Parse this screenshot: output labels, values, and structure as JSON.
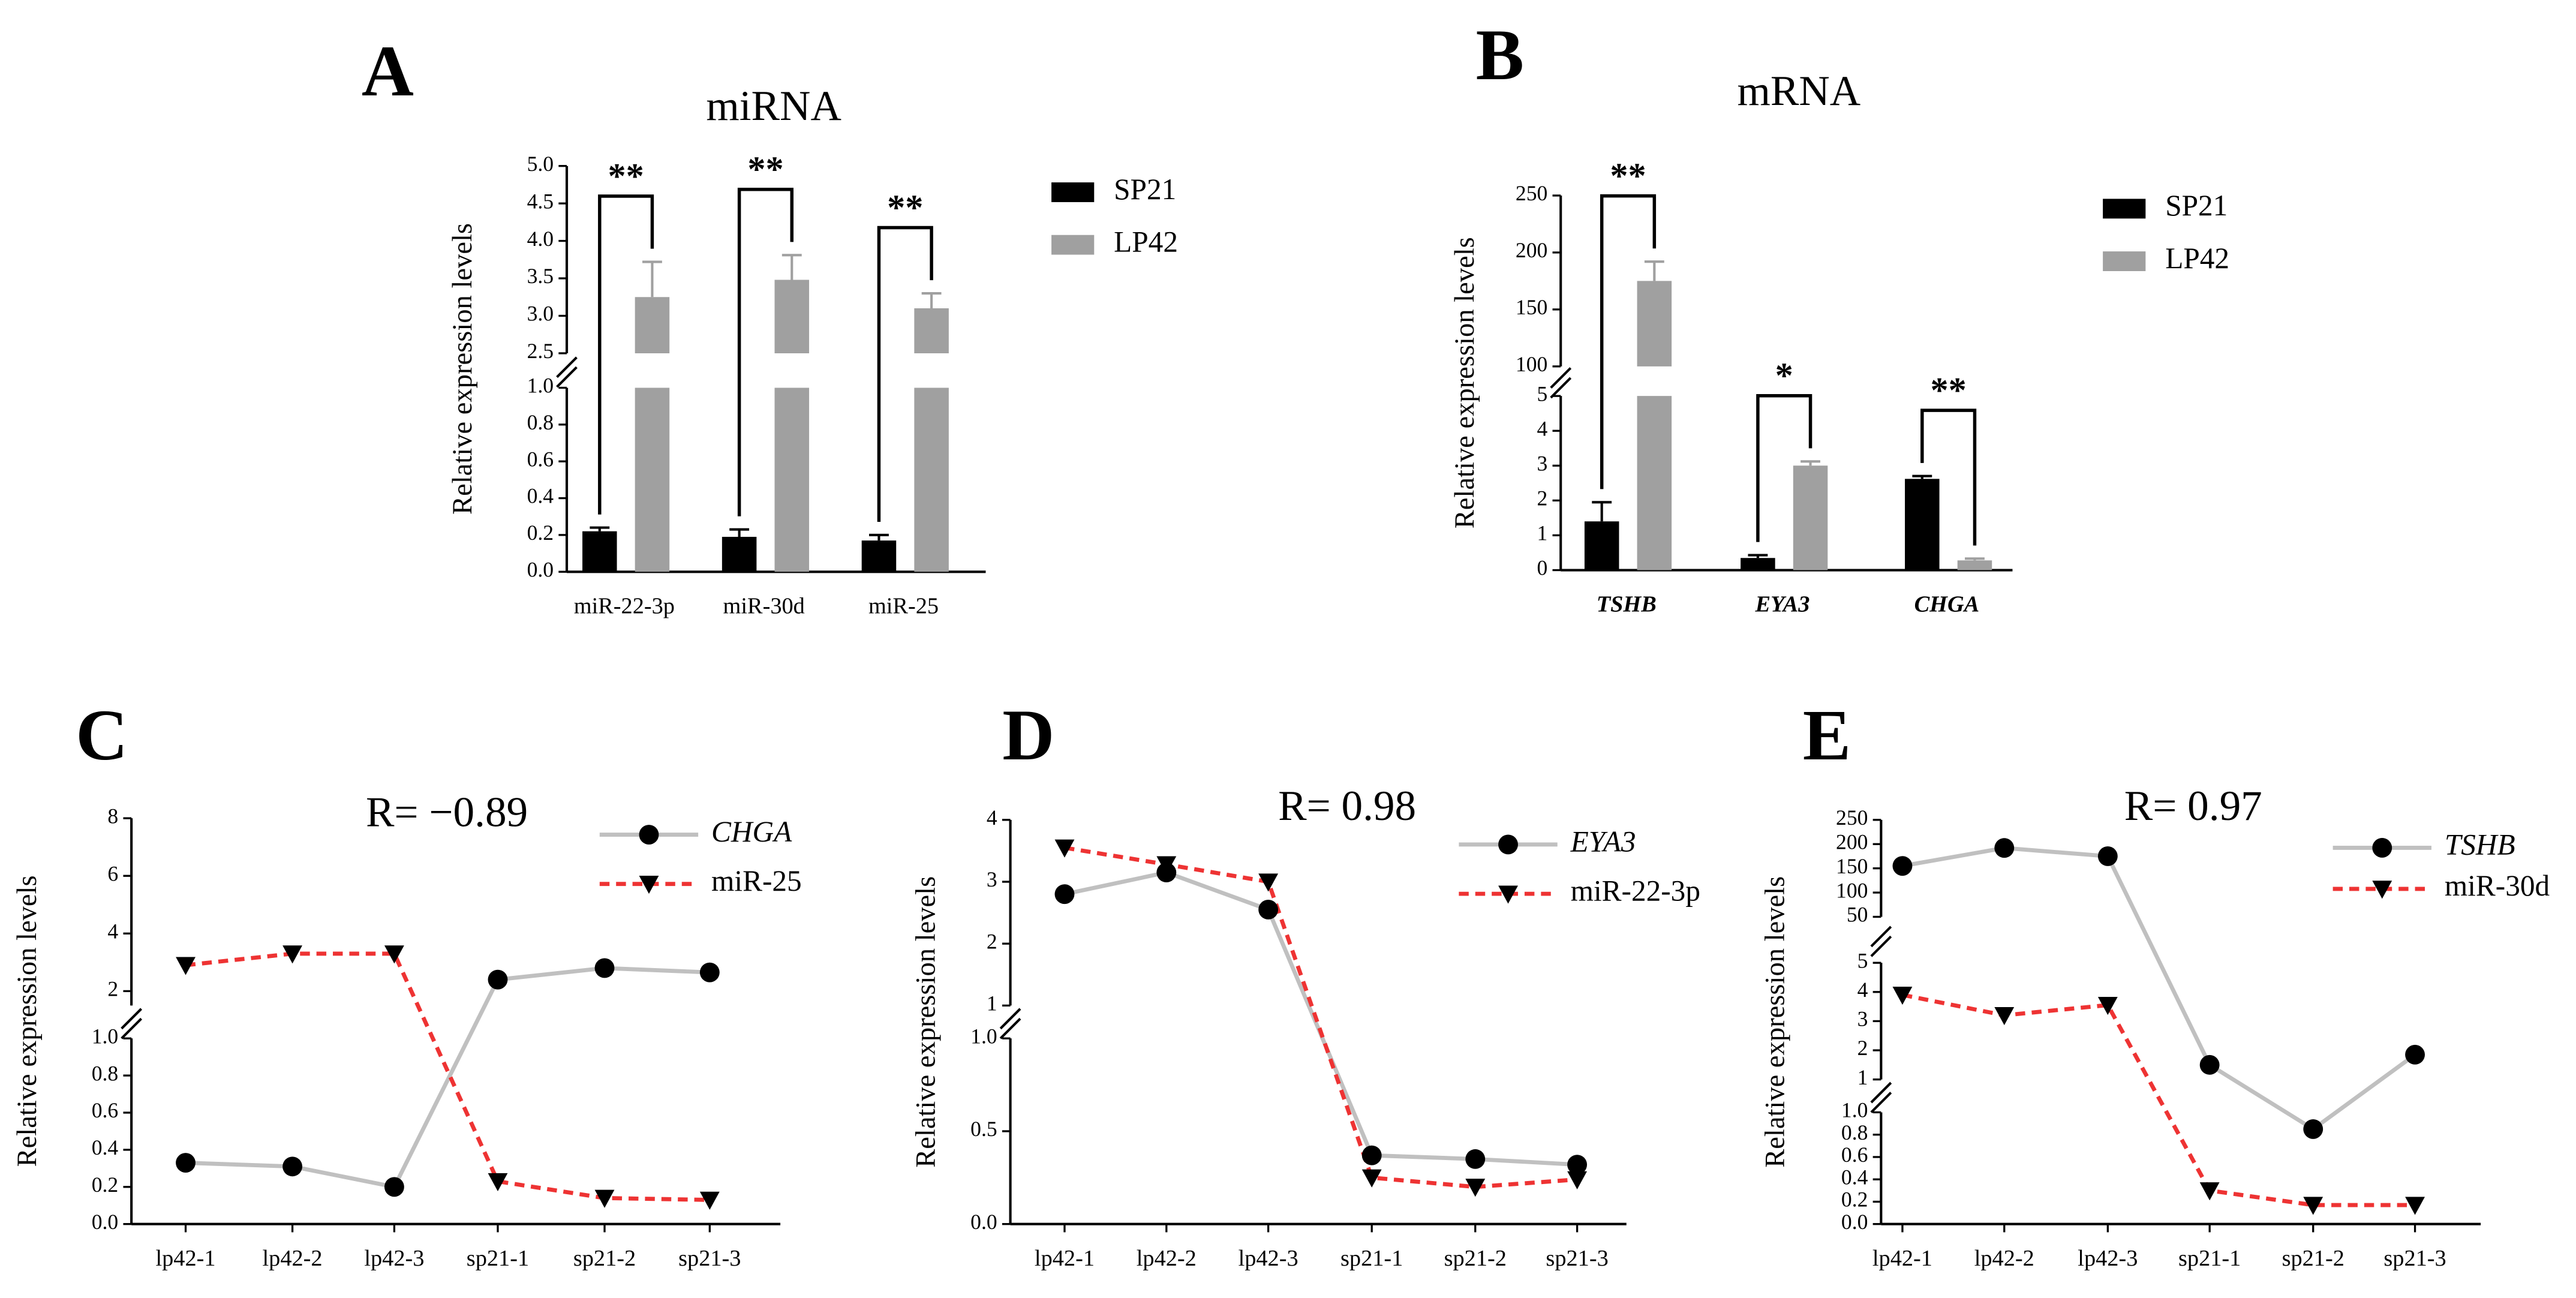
{
  "chart_data": [
    {
      "type": "bar",
      "panel": "A",
      "title": "miRNA",
      "ylabel": "Relative expression levels",
      "categories": [
        "miR-22-3p",
        "miR-30d",
        "miR-25"
      ],
      "categories_italic": false,
      "series": [
        {
          "name": "SP21",
          "color": "#000000",
          "values": [
            0.22,
            0.19,
            0.17
          ],
          "errors": [
            0.02,
            0.04,
            0.03
          ]
        },
        {
          "name": "LP42",
          "color": "#a0a0a0",
          "values": [
            3.25,
            3.48,
            3.1
          ],
          "errors": [
            0.47,
            0.33,
            0.2
          ]
        }
      ],
      "annotations": [
        "**",
        "**",
        "**"
      ],
      "ylim": [
        0,
        5
      ],
      "ybreaks": [
        [
          1,
          2.5
        ]
      ],
      "yticks": [
        [
          {
            "value": 0,
            "label": "0.0"
          },
          0.2,
          0.4,
          0.6,
          0.8,
          {
            "value": 1,
            "label": "1.0"
          }
        ],
        [
          2.5,
          {
            "value": 3,
            "label": "3.0"
          },
          3.5,
          {
            "value": 4,
            "label": "4.0"
          },
          4.5,
          {
            "value": 5,
            "label": "5.0"
          }
        ]
      ]
    },
    {
      "type": "bar",
      "panel": "B",
      "title": "mRNA",
      "ylabel": "Relative expression levels",
      "categories": [
        "TSHB",
        "EYA3",
        "CHGA"
      ],
      "categories_italic": true,
      "series": [
        {
          "name": "SP21",
          "color": "#000000",
          "values": [
            1.4,
            0.35,
            2.62
          ],
          "errors": [
            0.55,
            0.08,
            0.08
          ]
        },
        {
          "name": "LP42",
          "color": "#a0a0a0",
          "values": [
            175,
            3.0,
            0.28
          ],
          "errors": [
            17,
            0.12,
            0.05
          ]
        }
      ],
      "annotations": [
        "**",
        "*",
        "**"
      ],
      "ylim": [
        0,
        250
      ],
      "ybreaks": [
        [
          5,
          100
        ]
      ],
      "yticks": [
        [
          0,
          1,
          2,
          3,
          4,
          5
        ],
        [
          100,
          150,
          200,
          250
        ]
      ]
    },
    {
      "type": "line",
      "panel": "C",
      "title": "R= −0.89",
      "ylabel": "Relative expression levels",
      "categories": [
        "lp42-1",
        "lp42-2",
        "lp42-3",
        "sp21-1",
        "sp21-2",
        "sp21-3"
      ],
      "series": [
        {
          "name": "CHGA",
          "italic": true,
          "color": "#000000",
          "line_color": "#c0c0c0",
          "marker": "circle",
          "dashed": false,
          "values": [
            0.33,
            0.31,
            0.2,
            2.4,
            2.8,
            2.65
          ]
        },
        {
          "name": "miR-25",
          "italic": false,
          "color": "#000000",
          "line_color": "#ee3333",
          "marker": "triangle",
          "dashed": true,
          "values": [
            2.9,
            3.3,
            3.3,
            0.23,
            0.14,
            0.13
          ]
        }
      ],
      "ylim": [
        0,
        8
      ],
      "ybreaks": [
        [
          1,
          1.5
        ]
      ],
      "yticks": [
        [
          {
            "value": 0,
            "label": "0.0"
          },
          0.2,
          0.4,
          0.6,
          0.8,
          {
            "value": 1,
            "label": "1.0"
          }
        ],
        [
          2,
          4,
          6,
          8
        ]
      ]
    },
    {
      "type": "line",
      "panel": "D",
      "title": "R= 0.98",
      "ylabel": "Relative expression levels",
      "categories": [
        "lp42-1",
        "lp42-2",
        "lp42-3",
        "sp21-1",
        "sp21-2",
        "sp21-3"
      ],
      "series": [
        {
          "name": "EYA3",
          "italic": true,
          "color": "#000000",
          "line_color": "#c0c0c0",
          "marker": "circle",
          "dashed": false,
          "values": [
            2.8,
            3.15,
            2.55,
            0.37,
            0.35,
            0.32
          ]
        },
        {
          "name": "miR-22-3p",
          "italic": false,
          "color": "#000000",
          "line_color": "#ee3333",
          "marker": "triangle",
          "dashed": true,
          "values": [
            3.55,
            3.28,
            3.0,
            0.25,
            0.2,
            0.24
          ]
        }
      ],
      "ylim": [
        0,
        4
      ],
      "ybreaks": [
        [
          1,
          1
        ]
      ],
      "yticks": [
        [
          {
            "value": 0,
            "label": "0.0"
          },
          0.5,
          {
            "value": 1,
            "label": "1.0"
          }
        ],
        [
          1,
          2,
          3,
          4
        ]
      ]
    },
    {
      "type": "line",
      "panel": "E",
      "title": "R= 0.97",
      "ylabel": "Relative expression levels",
      "categories": [
        "lp42-1",
        "lp42-2",
        "lp42-3",
        "sp21-1",
        "sp21-2",
        "sp21-3"
      ],
      "series": [
        {
          "name": "TSHB",
          "italic": true,
          "color": "#000000",
          "line_color": "#c0c0c0",
          "marker": "circle",
          "dashed": false,
          "values": [
            155,
            192,
            175,
            1.5,
            0.85,
            1.85
          ]
        },
        {
          "name": "miR-30d",
          "italic": false,
          "color": "#000000",
          "line_color": "#ee3333",
          "marker": "triangle",
          "dashed": true,
          "values": [
            3.9,
            3.2,
            3.55,
            0.3,
            0.17,
            0.17
          ]
        }
      ],
      "ylim": [
        0,
        250
      ],
      "ybreaks": [
        [
          1,
          1
        ],
        [
          5,
          50
        ]
      ],
      "yticks": [
        [
          {
            "value": 0,
            "label": "0.0"
          },
          0.2,
          0.4,
          0.6,
          0.8,
          {
            "value": 1,
            "label": "1.0"
          }
        ],
        [
          1,
          2,
          3,
          4,
          5
        ],
        [
          50,
          100,
          150,
          200,
          250
        ]
      ]
    }
  ]
}
